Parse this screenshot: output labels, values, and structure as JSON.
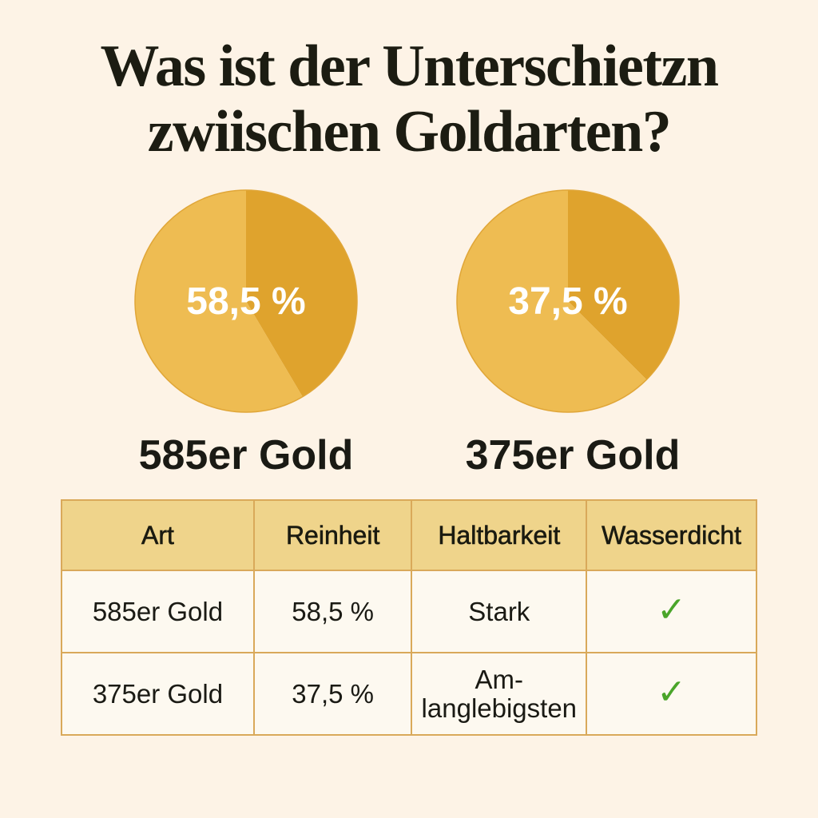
{
  "title": {
    "line1": "Was ist der Unterschietzn",
    "line2": "zwiischen Goldarten?"
  },
  "colors": {
    "background": "#fdf3e6",
    "pie_light": "#eebc52",
    "pie_dark": "#dfa32d",
    "table_header": "#efd48b",
    "table_border": "#d9a95a",
    "check": "#4aa52a"
  },
  "chart_data": [
    {
      "type": "pie",
      "label": "58,5 %",
      "name": "585er Gold",
      "slices": [
        {
          "value": 41.5,
          "color": "#dfa32d"
        },
        {
          "value": 58.5,
          "color": "#eebc52"
        }
      ]
    },
    {
      "type": "pie",
      "label": "37,5 %",
      "name": "375er Gold",
      "slices": [
        {
          "value": 37.5,
          "color": "#dfa32d"
        },
        {
          "value": 62.5,
          "color": "#eebc52"
        }
      ]
    }
  ],
  "table": {
    "headers": [
      "Art",
      "Reinheit",
      "Haltbarkeit",
      "Wasserdicht"
    ],
    "rows": [
      {
        "art": "585er Gold",
        "reinheit": "58,5 %",
        "haltbarkeit": "Stark",
        "wasserdicht": "✓",
        "wasserdicht_icon": "checkmark-icon"
      },
      {
        "art": "375er Gold",
        "reinheit": "37,5 %",
        "haltbarkeit": "Am-langlebigsten",
        "haltbarkeit_line1": "Am-",
        "haltbarkeit_line2": "langlebigsten",
        "wasserdicht": "✓",
        "wasserdicht_icon": "checkmark-icon"
      }
    ]
  }
}
